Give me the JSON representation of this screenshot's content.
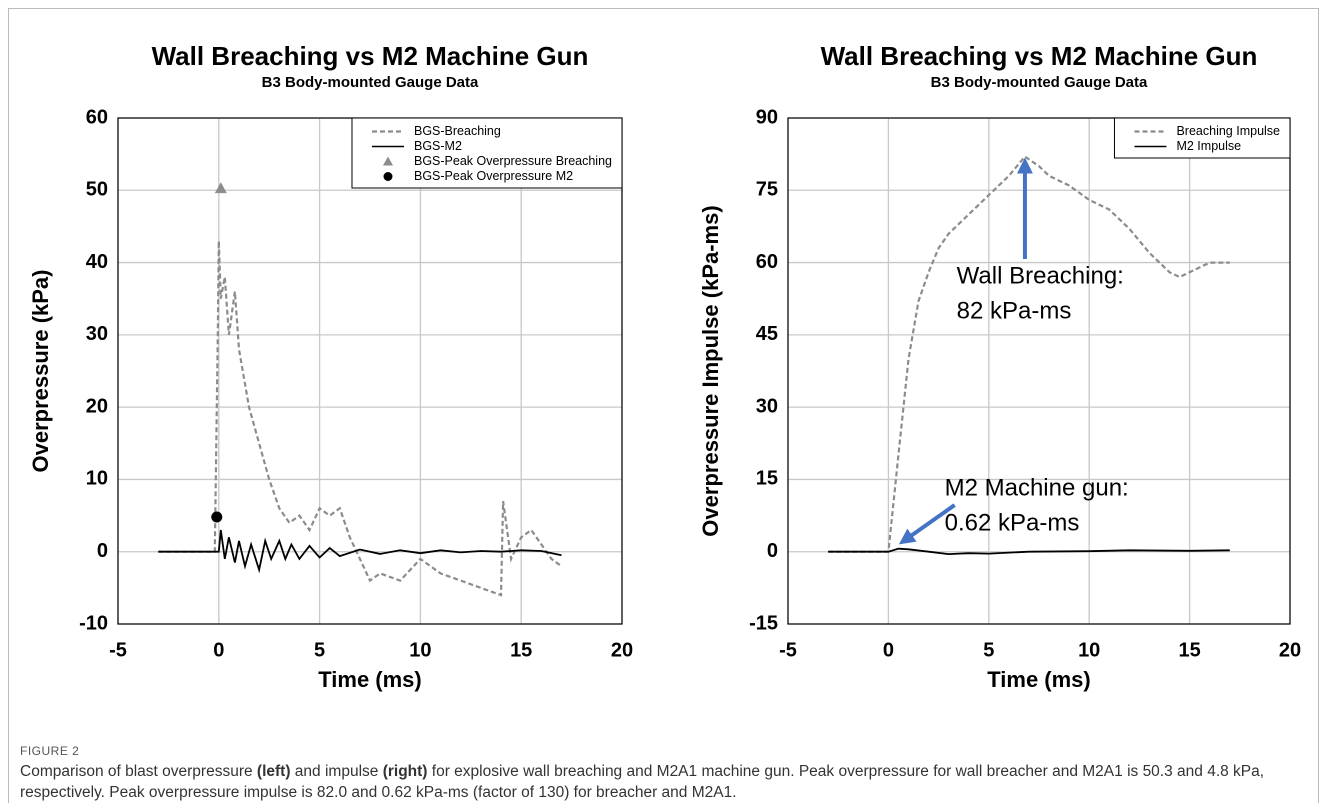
{
  "chart_data": [
    {
      "type": "line",
      "title": "Wall Breaching vs M2 Machine Gun",
      "subtitle": "B3 Body-mounted Gauge Data",
      "x_label": "Time (ms)",
      "y_label": "Overpressure (kPa)",
      "xlim": [
        -5,
        20
      ],
      "xticks": [
        -5,
        0,
        5,
        10,
        15,
        20
      ],
      "ylim": [
        -10,
        60
      ],
      "yticks": [
        -10,
        0,
        10,
        20,
        30,
        40,
        50,
        60
      ],
      "grid": true,
      "legend": "upper right",
      "series": [
        {
          "name": "BGS-Breaching",
          "color": "#8c8c8c",
          "dashed": true,
          "x": [
            -3,
            -1,
            -0.2,
            -0.05,
            0,
            0.1,
            0.3,
            0.5,
            0.8,
            1,
            1.5,
            2,
            2.5,
            3,
            3.5,
            4,
            4.5,
            5,
            5.5,
            6,
            6.5,
            7,
            7.5,
            8,
            9,
            10,
            11,
            12,
            13,
            14,
            14.1,
            14.5,
            15,
            15.5,
            16,
            16.5,
            17
          ],
          "values": [
            0,
            0,
            0,
            30,
            43,
            35,
            38,
            30,
            36,
            28,
            20,
            15,
            10,
            6,
            4,
            5,
            3,
            6,
            5,
            6,
            2,
            -1,
            -4,
            -3,
            -4,
            -1,
            -3,
            -4,
            -5,
            -6,
            7,
            -1,
            2,
            3,
            1,
            -1,
            -2
          ]
        },
        {
          "name": "BGS-M2",
          "color": "#000000",
          "dashed": false,
          "x": [
            -3,
            -2,
            -1,
            -0.3,
            0,
            0.1,
            0.3,
            0.5,
            0.8,
            1,
            1.3,
            1.6,
            2,
            2.3,
            2.6,
            3,
            3.3,
            3.6,
            4,
            4.5,
            5,
            5.5,
            6,
            7,
            8,
            9,
            10,
            11,
            12,
            13,
            14,
            15,
            16,
            17
          ],
          "values": [
            0,
            0,
            0,
            0,
            0,
            3,
            -1,
            2,
            -1.5,
            1.5,
            -2,
            1,
            -2.5,
            1.5,
            -1,
            1.5,
            -1,
            1,
            -1,
            0.8,
            -0.8,
            0.5,
            -0.6,
            0.3,
            -0.3,
            0.2,
            -0.2,
            0.2,
            -0.1,
            0.1,
            0,
            0.2,
            0.1,
            -0.5
          ]
        }
      ],
      "markers": [
        {
          "name": "BGS-Peak Overpressure Breaching",
          "color": "#8c8c8c",
          "shape": "triangle",
          "x": 0.1,
          "value": 50.3
        },
        {
          "name": "BGS-Peak Overpressure M2",
          "color": "#000000",
          "shape": "circle",
          "x": -0.1,
          "value": 4.8
        }
      ],
      "annotations": []
    },
    {
      "type": "line",
      "title": "Wall Breaching vs M2 Machine Gun",
      "subtitle": "B3 Body-mounted Gauge Data",
      "x_label": "Time (ms)",
      "y_label": "Overpressure Impulse (kPa-ms)",
      "xlim": [
        -5,
        20
      ],
      "xticks": [
        -5,
        0,
        5,
        10,
        15,
        20
      ],
      "ylim": [
        -15,
        90
      ],
      "yticks": [
        -15,
        0,
        15,
        30,
        45,
        60,
        75,
        90
      ],
      "grid": true,
      "legend": "upper right",
      "series": [
        {
          "name": "Breaching Impulse",
          "color": "#8c8c8c",
          "dashed": true,
          "x": [
            -3,
            -1,
            0,
            0.5,
            1,
            1.5,
            2,
            2.5,
            3,
            4,
            5,
            6,
            6.8,
            7.5,
            8,
            9,
            10,
            11,
            12,
            13,
            14,
            14.5,
            15,
            16,
            17
          ],
          "values": [
            0,
            0,
            0,
            20,
            40,
            52,
            58,
            63,
            66,
            70,
            74,
            78,
            82,
            80,
            78,
            76,
            73,
            71,
            67,
            62,
            58,
            57,
            58,
            60,
            60
          ]
        },
        {
          "name": "M2 Impulse",
          "color": "#000000",
          "dashed": false,
          "x": [
            -3,
            0,
            0.5,
            1,
            2,
            3,
            4,
            5,
            7,
            10,
            12,
            15,
            17
          ],
          "values": [
            0,
            0,
            0.62,
            0.5,
            0,
            -0.5,
            -0.3,
            -0.4,
            0,
            0.1,
            0.3,
            0.2,
            0.3
          ]
        }
      ],
      "markers": [],
      "annotations": [
        {
          "lines": [
            "Wall Breaching:",
            "82 kPa-ms"
          ],
          "x": 6.8,
          "y": 82,
          "text_x": 3.4,
          "text_y": 57,
          "color": "#4472c4"
        },
        {
          "lines": [
            "M2 Machine gun:",
            "0.62 kPa-ms"
          ],
          "x": 0.5,
          "y": 0.62,
          "text_x": 2.8,
          "text_y": 13,
          "color": "#4472c4"
        }
      ]
    }
  ],
  "figure": {
    "label": "FIGURE 2",
    "caption": [
      {
        "text": "Comparison of blast overpressure ",
        "bold": false
      },
      {
        "text": "(left)",
        "bold": true
      },
      {
        "text": " and impulse ",
        "bold": false
      },
      {
        "text": "(right)",
        "bold": true
      },
      {
        "text": " for explosive wall breaching and M2A1 machine gun. Peak overpressure for wall breacher and M2A1 is 50.3 and 4.8 kPa, respectively. Peak overpressure impulse is 82.0 and 0.62 kPa-ms (factor of 130) for breacher and M2A1.",
        "bold": false
      }
    ]
  }
}
